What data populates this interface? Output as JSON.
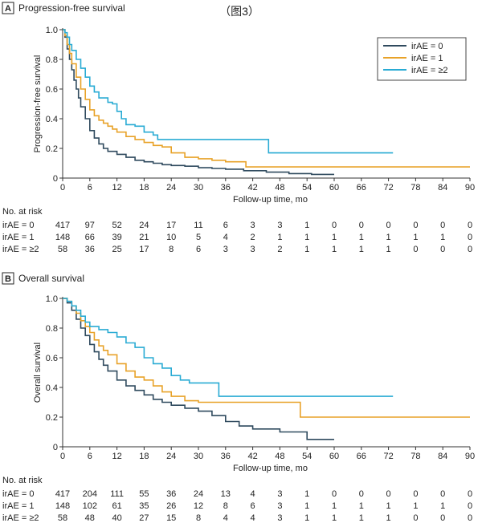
{
  "caption": "（图3）",
  "colors": {
    "irAE0": "#2f4a5e",
    "irAE1": "#e8a228",
    "irAE2": "#29abd4",
    "text": "#222222",
    "axis": "#333333"
  },
  "panels": [
    {
      "id": "pfs",
      "letter": "A",
      "title": "Progression-free survival",
      "risk_title": "No. at risk",
      "chart_data": {
        "type": "line",
        "title": "Progression-free survival",
        "xlabel": "Follow-up time, mo",
        "ylabel": "Progression-free survival",
        "xlim": [
          0,
          90
        ],
        "ylim": [
          0,
          1.0
        ],
        "xticks": [
          0,
          6,
          12,
          18,
          24,
          30,
          36,
          42,
          48,
          54,
          60,
          66,
          72,
          78,
          84,
          90
        ],
        "yticks": [
          0,
          0.2,
          0.4,
          0.6,
          0.8,
          1.0
        ],
        "ytick_labels": [
          "0",
          "0.2",
          "0.4",
          "0.6",
          "0.8",
          "1.0"
        ],
        "legend_position": "top-right",
        "series": [
          {
            "name": "irAE = 0",
            "color": "#2f4a5e",
            "x": [
              0,
              0.5,
              1,
              1.5,
              2,
              2.5,
              3,
              3.5,
              4,
              5,
              6,
              7,
              8,
              9,
              10,
              12,
              14,
              16,
              18,
              20,
              22,
              24,
              27,
              30,
              33,
              36,
              40,
              45,
              50,
              55,
              60
            ],
            "y": [
              1.0,
              0.95,
              0.87,
              0.8,
              0.73,
              0.66,
              0.6,
              0.54,
              0.48,
              0.4,
              0.32,
              0.27,
              0.23,
              0.2,
              0.18,
              0.16,
              0.14,
              0.12,
              0.11,
              0.1,
              0.09,
              0.085,
              0.08,
              0.07,
              0.065,
              0.06,
              0.05,
              0.04,
              0.03,
              0.025,
              0.025
            ]
          },
          {
            "name": "irAE = 1",
            "color": "#e8a228",
            "x": [
              0,
              0.5,
              1,
              1.5,
              2,
              3,
              4,
              5,
              6,
              7,
              8,
              9,
              10,
              11,
              12,
              14,
              16,
              18,
              20,
              22,
              24,
              27,
              30,
              33,
              36,
              40,
              40.5,
              50,
              60,
              70,
              80,
              90
            ],
            "y": [
              1.0,
              0.96,
              0.9,
              0.84,
              0.77,
              0.68,
              0.6,
              0.53,
              0.46,
              0.42,
              0.39,
              0.37,
              0.35,
              0.33,
              0.31,
              0.28,
              0.26,
              0.24,
              0.22,
              0.21,
              0.17,
              0.14,
              0.13,
              0.12,
              0.11,
              0.11,
              0.075,
              0.075,
              0.075,
              0.075,
              0.075,
              0.075
            ]
          },
          {
            "name": "irAE = ≥2",
            "color": "#29abd4",
            "x": [
              0,
              0.5,
              1,
              1.5,
              2,
              3,
              4,
              5,
              6,
              7,
              8,
              10,
              11,
              12,
              13,
              14,
              16,
              18,
              20,
              21,
              24,
              30,
              36,
              40,
              45,
              45.5,
              50,
              55,
              60,
              65,
              70,
              73
            ],
            "y": [
              1.0,
              0.98,
              0.95,
              0.9,
              0.86,
              0.8,
              0.74,
              0.68,
              0.62,
              0.58,
              0.54,
              0.51,
              0.5,
              0.45,
              0.4,
              0.36,
              0.35,
              0.31,
              0.29,
              0.26,
              0.26,
              0.26,
              0.26,
              0.26,
              0.26,
              0.17,
              0.17,
              0.17,
              0.17,
              0.17,
              0.17,
              0.17
            ]
          }
        ]
      },
      "risk_rows": [
        {
          "label": "irAE = 0",
          "values": [
            "417",
            "97",
            "52",
            "24",
            "17",
            "11",
            "6",
            "3",
            "3",
            "1",
            "0",
            "0",
            "0",
            "0",
            "0",
            "0"
          ]
        },
        {
          "label": "irAE = 1",
          "values": [
            "148",
            "66",
            "39",
            "21",
            "10",
            "5",
            "4",
            "2",
            "1",
            "1",
            "1",
            "1",
            "1",
            "1",
            "1",
            "0"
          ]
        },
        {
          "label": "irAE = ≥2",
          "values": [
            "58",
            "36",
            "25",
            "17",
            "8",
            "6",
            "3",
            "3",
            "2",
            "1",
            "1",
            "1",
            "1",
            "0",
            "0",
            "0"
          ]
        }
      ]
    },
    {
      "id": "os",
      "letter": "B",
      "title": "Overall survival",
      "risk_title": "No. at risk",
      "chart_data": {
        "type": "line",
        "title": "Overall survival",
        "xlabel": "Follow-up time, mo",
        "ylabel": "Overall survival",
        "xlim": [
          0,
          90
        ],
        "ylim": [
          0,
          1.0
        ],
        "xticks": [
          0,
          6,
          12,
          18,
          24,
          30,
          36,
          42,
          48,
          54,
          60,
          66,
          72,
          78,
          84,
          90
        ],
        "yticks": [
          0,
          0.2,
          0.4,
          0.6,
          0.8,
          1.0
        ],
        "ytick_labels": [
          "0",
          "0.2",
          "0.4",
          "0.6",
          "0.8",
          "1.0"
        ],
        "legend_position": "none",
        "series": [
          {
            "name": "irAE = 0",
            "color": "#2f4a5e",
            "x": [
              0,
              1,
              2,
              3,
              4,
              5,
              6,
              7,
              8,
              9,
              10,
              12,
              14,
              16,
              18,
              20,
              22,
              24,
              27,
              30,
              33,
              36,
              39,
              42,
              45,
              48,
              50,
              51,
              53,
              54,
              58,
              60
            ],
            "y": [
              1.0,
              0.97,
              0.92,
              0.86,
              0.8,
              0.75,
              0.69,
              0.64,
              0.59,
              0.55,
              0.51,
              0.45,
              0.41,
              0.38,
              0.35,
              0.32,
              0.3,
              0.28,
              0.26,
              0.24,
              0.21,
              0.17,
              0.14,
              0.12,
              0.12,
              0.1,
              0.1,
              0.1,
              0.1,
              0.05,
              0.05,
              0.05
            ]
          },
          {
            "name": "irAE = 1",
            "color": "#e8a228",
            "x": [
              0,
              1,
              2,
              3,
              4,
              5,
              6,
              7,
              8,
              9,
              10,
              12,
              14,
              16,
              18,
              20,
              22,
              24,
              27,
              30,
              33,
              36,
              40,
              45,
              50,
              52,
              52.5,
              60,
              70,
              80,
              90
            ],
            "y": [
              1.0,
              0.98,
              0.95,
              0.9,
              0.85,
              0.81,
              0.77,
              0.72,
              0.68,
              0.65,
              0.62,
              0.56,
              0.51,
              0.47,
              0.45,
              0.41,
              0.37,
              0.34,
              0.31,
              0.3,
              0.3,
              0.3,
              0.3,
              0.3,
              0.3,
              0.3,
              0.2,
              0.2,
              0.2,
              0.2,
              0.2
            ]
          },
          {
            "name": "irAE = ≥2",
            "color": "#29abd4",
            "x": [
              0,
              1,
              2,
              3,
              4,
              5,
              6,
              8,
              10,
              12,
              14,
              16,
              18,
              20,
              22,
              24,
              26,
              28,
              30,
              32,
              34,
              34.5,
              40,
              45,
              50,
              55,
              60,
              65,
              70,
              73
            ],
            "y": [
              1.0,
              0.98,
              0.95,
              0.92,
              0.88,
              0.84,
              0.81,
              0.79,
              0.77,
              0.74,
              0.7,
              0.67,
              0.6,
              0.56,
              0.53,
              0.48,
              0.45,
              0.43,
              0.43,
              0.43,
              0.43,
              0.34,
              0.34,
              0.34,
              0.34,
              0.34,
              0.34,
              0.34,
              0.34,
              0.34
            ]
          }
        ]
      },
      "risk_rows": [
        {
          "label": "irAE = 0",
          "values": [
            "417",
            "204",
            "111",
            "55",
            "36",
            "24",
            "13",
            "4",
            "3",
            "1",
            "0",
            "0",
            "0",
            "0",
            "0",
            "0"
          ]
        },
        {
          "label": "irAE = 1",
          "values": [
            "148",
            "102",
            "61",
            "35",
            "26",
            "12",
            "8",
            "6",
            "3",
            "1",
            "1",
            "1",
            "1",
            "1",
            "1",
            "0"
          ]
        },
        {
          "label": "irAE = ≥2",
          "values": [
            "58",
            "48",
            "40",
            "27",
            "15",
            "8",
            "4",
            "4",
            "3",
            "1",
            "1",
            "1",
            "1",
            "0",
            "0",
            "0"
          ]
        }
      ]
    }
  ]
}
